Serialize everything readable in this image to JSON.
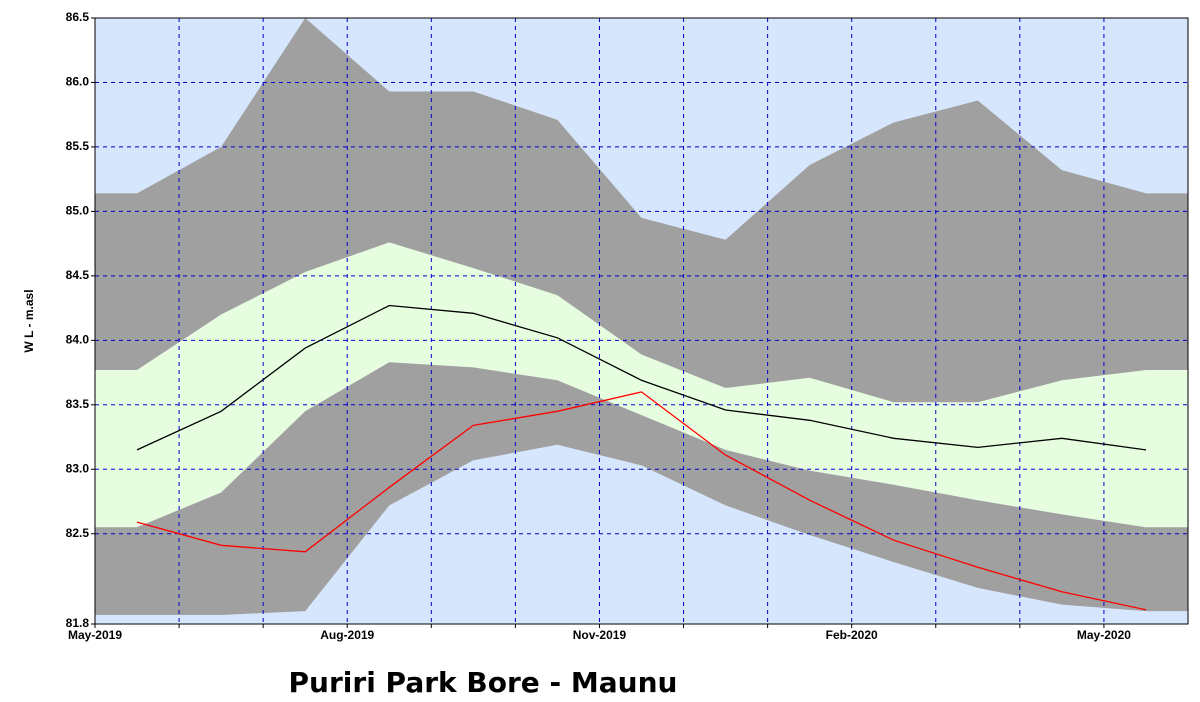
{
  "chart_data": {
    "type": "line",
    "title": "Puriri Park Bore - Maunu",
    "y_label": "W L - m.asl",
    "background": "#d6e6fc",
    "grid": true,
    "grid_color": "#0000cc",
    "xlim": [
      "2019-05",
      "2020-06"
    ],
    "xticks": [
      {
        "value": "2019-05",
        "label": "May-2019"
      },
      {
        "value": "2019-06",
        "label": null
      },
      {
        "value": "2019-07",
        "label": null
      },
      {
        "value": "2019-08",
        "label": "Aug-2019"
      },
      {
        "value": "2019-09",
        "label": null
      },
      {
        "value": "2019-10",
        "label": null
      },
      {
        "value": "2019-11",
        "label": "Nov-2019"
      },
      {
        "value": "2019-12",
        "label": null
      },
      {
        "value": "2020-01",
        "label": null
      },
      {
        "value": "2020-02",
        "label": "Feb-2020"
      },
      {
        "value": "2020-03",
        "label": null
      },
      {
        "value": "2020-04",
        "label": null
      },
      {
        "value": "2020-05",
        "label": "May-2020"
      }
    ],
    "ylim": [
      81.8,
      86.5
    ],
    "yticks": [
      81.8,
      82.5,
      {
        "value": 83,
        "label": "83.0"
      },
      83.5,
      {
        "value": 84,
        "label": "84.0"
      },
      84.5,
      {
        "value": 85,
        "label": "85.0"
      },
      85.5,
      {
        "value": 86,
        "label": "86.0"
      },
      86.5
    ],
    "x": [
      "2019-05",
      "2019-06",
      "2019-07",
      "2019-08",
      "2019-09",
      "2019-10",
      "2019-11",
      "2019-12",
      "2020-01",
      "2020-02",
      "2020-03",
      "2020-04",
      "2020-05"
    ],
    "bands": [
      {
        "color": "#a0a0a0",
        "upper": [
          85.14,
          85.5,
          86.5,
          85.93,
          85.93,
          85.71,
          84.95,
          84.78,
          85.36,
          85.69,
          85.86,
          85.32,
          85.14
        ],
        "lower": [
          81.87,
          81.87,
          81.9,
          82.72,
          83.07,
          83.19,
          83.03,
          82.72,
          82.49,
          82.28,
          82.08,
          81.95,
          81.9
        ]
      },
      {
        "color": "#e6fde0",
        "upper": [
          83.77,
          84.2,
          84.53,
          84.76,
          84.56,
          84.35,
          83.89,
          83.63,
          83.71,
          83.52,
          83.52,
          83.69,
          83.77
        ],
        "lower": [
          82.55,
          82.82,
          83.45,
          83.83,
          83.79,
          83.69,
          83.42,
          83.15,
          82.99,
          82.88,
          82.76,
          82.65,
          82.55
        ]
      }
    ],
    "series": [
      {
        "color": "#000000",
        "values": [
          83.15,
          83.45,
          83.94,
          84.27,
          84.21,
          84.02,
          83.69,
          83.46,
          83.38,
          83.24,
          83.17,
          83.24,
          83.15
        ]
      },
      {
        "color": "#ff0000",
        "values": [
          82.59,
          82.41,
          82.36,
          82.86,
          83.34,
          83.45,
          83.6,
          83.11,
          82.76,
          82.45,
          82.24,
          82.05,
          81.91
        ]
      }
    ]
  }
}
